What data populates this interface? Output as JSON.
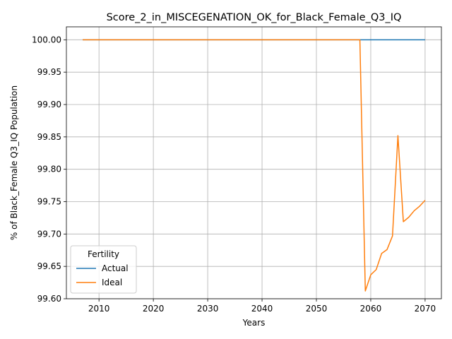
{
  "chart_data": {
    "type": "line",
    "title": "Score_2_in_MISCEGENATION_OK_for_Black_Female_Q3_IQ",
    "xlabel": "Years",
    "ylabel": "% of Black_Female Q3_IQ Population",
    "xlim": [
      2004,
      2073
    ],
    "ylim": [
      99.6,
      100.02
    ],
    "x_ticks": [
      2010,
      2020,
      2030,
      2040,
      2050,
      2060,
      2070
    ],
    "y_ticks": [
      99.6,
      99.65,
      99.7,
      99.75,
      99.8,
      99.85,
      99.9,
      99.95,
      100.0
    ],
    "grid": true,
    "legend": {
      "title": "Fertility",
      "position": "lower-left"
    },
    "series": [
      {
        "name": "Actual",
        "color": "#1f77b4",
        "points": [
          [
            2007,
            100.0
          ],
          [
            2070,
            100.0
          ]
        ]
      },
      {
        "name": "Ideal",
        "color": "#ff7f0e",
        "points": [
          [
            2007,
            100.0
          ],
          [
            2058,
            100.0
          ],
          [
            2059,
            99.612
          ],
          [
            2060,
            99.637
          ],
          [
            2061,
            99.645
          ],
          [
            2062,
            99.67
          ],
          [
            2063,
            99.676
          ],
          [
            2064,
            99.697
          ],
          [
            2065,
            99.852
          ],
          [
            2066,
            99.719
          ],
          [
            2067,
            99.726
          ],
          [
            2068,
            99.736
          ],
          [
            2069,
            99.743
          ],
          [
            2070,
            99.752
          ]
        ]
      }
    ]
  }
}
